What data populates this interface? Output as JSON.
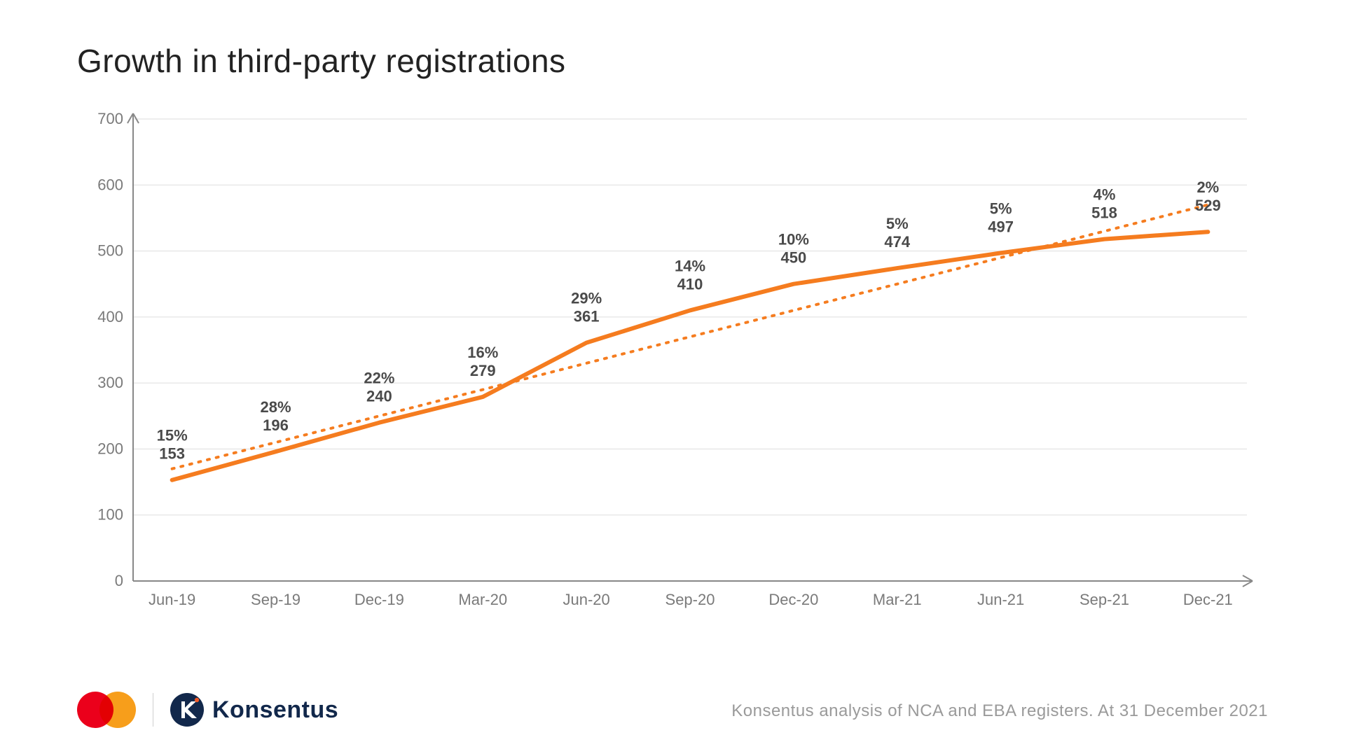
{
  "title": "Growth in third-party registrations",
  "source_note": "Konsentus analysis of NCA and EBA registers. At 31 December 2021",
  "chart": {
    "type": "line",
    "background_color": "#ffffff",
    "grid_color": "#dddddd",
    "axis_color": "#888888",
    "tick_label_color": "#7a7a7a",
    "tick_fontsize": 22,
    "point_label_color": "#4a4a4a",
    "point_label_fontsize": 22,
    "y": {
      "min": 0,
      "max": 700,
      "step": 100,
      "ticks": [
        0,
        100,
        200,
        300,
        400,
        500,
        600,
        700
      ]
    },
    "x_labels": [
      "Jun-19",
      "Sep-19",
      "Dec-19",
      "Mar-20",
      "Jun-20",
      "Sep-20",
      "Dec-20",
      "Mar-21",
      "Jun-21",
      "Sep-21",
      "Dec-21"
    ],
    "series_main": {
      "color": "#f57c1f",
      "width": 6,
      "values": [
        153,
        196,
        240,
        279,
        361,
        410,
        450,
        474,
        497,
        518,
        529
      ],
      "pct_labels": [
        "15%",
        "28%",
        "22%",
        "16%",
        "29%",
        "14%",
        "10%",
        "5%",
        "5%",
        "4%",
        "2%"
      ]
    },
    "series_trend": {
      "color": "#f57c1f",
      "width": 4,
      "dash": "3 10",
      "start_value": 170,
      "end_value": 570
    }
  },
  "logos": {
    "mastercard": {
      "left_color": "#eb001b",
      "right_color": "#f79e1b"
    },
    "konsentus": {
      "mark_bg": "#12284b",
      "accent": "#f05a28",
      "text": "Konsentus",
      "text_color": "#12284b"
    }
  }
}
